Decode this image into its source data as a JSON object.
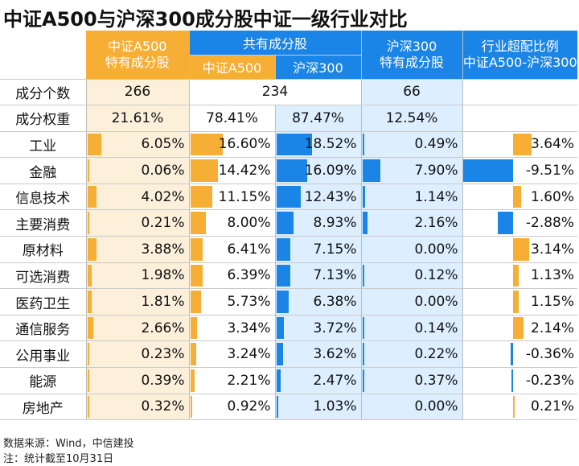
{
  "title": "中证A500与沪深300成分股中证一级行业对比",
  "header": {
    "a500_only": [
      "中证A500",
      "特有成分股"
    ],
    "common": "共有成分股",
    "common_a500": "中证A500",
    "common_hs300": "沪深300",
    "hs300_only": [
      "沪深300",
      "特有成分股"
    ],
    "overweight": [
      "行业超配比例",
      "中证A500-沪深300"
    ]
  },
  "summary": {
    "count_label": "成分个数",
    "count_a500_only": "266",
    "count_common": "234",
    "count_hs300_only": "66",
    "weight_label": "成分权重",
    "weight_a500_only": "21.61%",
    "weight_common_a500": "78.41%",
    "weight_common_hs300": "87.47%",
    "weight_hs300_only": "12.54%"
  },
  "colors": {
    "orange": "#f7ae34",
    "blue": "#1a85e6",
    "light_orange": "#fdf0db",
    "light_blue": "#ddefff"
  },
  "chart_data": {
    "type": "table",
    "columns": [
      "中证A500特有成分股",
      "共有成分股-中证A500",
      "共有成分股-沪深300",
      "沪深300特有成分股",
      "行业超配比例(中证A500-沪深300)"
    ],
    "rows": [
      {
        "industry": "工业",
        "values": [
          6.05,
          16.6,
          18.52,
          0.49,
          3.64
        ],
        "labels": [
          "6.05%",
          "16.60%",
          "18.52%",
          "0.49%",
          "3.64%"
        ]
      },
      {
        "industry": "金融",
        "values": [
          0.06,
          14.42,
          16.09,
          7.9,
          -9.51
        ],
        "labels": [
          "0.06%",
          "14.42%",
          "16.09%",
          "7.90%",
          "-9.51%"
        ]
      },
      {
        "industry": "信息技术",
        "values": [
          4.02,
          11.15,
          12.43,
          1.14,
          1.6
        ],
        "labels": [
          "4.02%",
          "11.15%",
          "12.43%",
          "1.14%",
          "1.60%"
        ]
      },
      {
        "industry": "主要消费",
        "values": [
          0.21,
          8.0,
          8.93,
          2.16,
          -2.88
        ],
        "labels": [
          "0.21%",
          "8.00%",
          "8.93%",
          "2.16%",
          "-2.88%"
        ]
      },
      {
        "industry": "原材料",
        "values": [
          3.88,
          6.41,
          7.15,
          0.0,
          3.14
        ],
        "labels": [
          "3.88%",
          "6.41%",
          "7.15%",
          "0.00%",
          "3.14%"
        ]
      },
      {
        "industry": "可选消费",
        "values": [
          1.98,
          6.39,
          7.13,
          0.12,
          1.13
        ],
        "labels": [
          "1.98%",
          "6.39%",
          "7.13%",
          "0.12%",
          "1.13%"
        ]
      },
      {
        "industry": "医药卫生",
        "values": [
          1.81,
          5.73,
          6.38,
          0.0,
          1.15
        ],
        "labels": [
          "1.81%",
          "5.73%",
          "6.38%",
          "0.00%",
          "1.15%"
        ]
      },
      {
        "industry": "通信服务",
        "values": [
          2.66,
          3.34,
          3.72,
          0.14,
          2.14
        ],
        "labels": [
          "2.66%",
          "3.34%",
          "3.72%",
          "0.14%",
          "2.14%"
        ]
      },
      {
        "industry": "公用事业",
        "values": [
          0.23,
          3.24,
          3.62,
          0.22,
          -0.36
        ],
        "labels": [
          "0.23%",
          "3.24%",
          "3.62%",
          "0.22%",
          "-0.36%"
        ]
      },
      {
        "industry": "能源",
        "values": [
          0.39,
          2.21,
          2.47,
          0.37,
          -0.23
        ],
        "labels": [
          "0.39%",
          "2.21%",
          "2.47%",
          "0.37%",
          "-0.23%"
        ]
      },
      {
        "industry": "房地产",
        "values": [
          0.32,
          0.92,
          1.03,
          0.0,
          0.21
        ],
        "labels": [
          "0.32%",
          "0.92%",
          "1.03%",
          "0.00%",
          "0.21%"
        ]
      }
    ]
  },
  "footnotes": {
    "source": "数据来源：Wind，中信建投",
    "note": "注：统计截至10月31日"
  }
}
